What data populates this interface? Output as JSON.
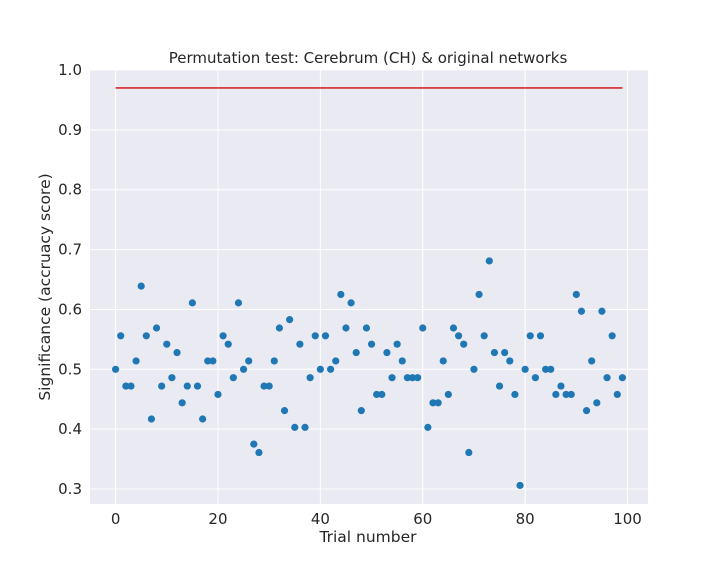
{
  "chart_data": {
    "type": "scatter",
    "title": "Permutation test: Cerebrum (CH) & original networks",
    "xlabel": "Trial number",
    "ylabel": "Significance (accruacy score)",
    "xlim": [
      -5,
      104
    ],
    "ylim": [
      0.275,
      1.0
    ],
    "xticks": [
      0,
      20,
      40,
      60,
      80,
      100
    ],
    "xtick_labels": [
      "0",
      "20",
      "40",
      "60",
      "80",
      "100"
    ],
    "yticks": [
      0.3,
      0.4,
      0.5,
      0.6,
      0.7,
      0.8,
      0.9,
      1.0
    ],
    "ytick_labels": [
      "0.3",
      "0.4",
      "0.5",
      "0.6",
      "0.7",
      "0.8",
      "0.9",
      "1.0"
    ],
    "grid": true,
    "colors": {
      "points": "#1f77b4",
      "reference_line": "#d62728",
      "plot_background": "#eaeaf2",
      "grid": "#ffffff"
    },
    "reference_line": {
      "x": [
        0,
        99
      ],
      "y": 0.97
    },
    "series": [
      {
        "x": [
          0,
          1,
          2,
          3,
          4,
          5,
          6,
          7,
          8,
          9,
          10,
          11,
          12,
          13,
          14,
          15,
          16,
          17,
          18,
          19,
          20,
          21,
          22,
          23,
          24,
          25,
          26,
          27,
          28,
          29,
          30,
          31,
          32,
          33,
          34,
          35,
          36,
          37,
          38,
          39,
          40,
          41,
          42,
          43,
          44,
          45,
          46,
          47,
          48,
          49,
          50,
          51,
          52,
          53,
          54,
          55,
          56,
          57,
          58,
          59,
          60,
          61,
          62,
          63,
          64,
          65,
          66,
          67,
          68,
          69,
          70,
          71,
          72,
          73,
          74,
          75,
          76,
          77,
          78,
          79,
          80,
          81,
          82,
          83,
          84,
          85,
          86,
          87,
          88,
          89,
          90,
          91,
          92,
          93,
          94,
          95,
          96,
          97,
          98,
          99
        ],
        "y": [
          0.5,
          0.556,
          0.472,
          0.472,
          0.514,
          0.639,
          0.556,
          0.417,
          0.569,
          0.472,
          0.542,
          0.486,
          0.528,
          0.444,
          0.472,
          0.611,
          0.472,
          0.417,
          0.514,
          0.514,
          0.458,
          0.556,
          0.542,
          0.486,
          0.611,
          0.5,
          0.514,
          0.375,
          0.361,
          0.472,
          0.472,
          0.514,
          0.569,
          0.431,
          0.583,
          0.403,
          0.542,
          0.403,
          0.486,
          0.556,
          0.5,
          0.556,
          0.5,
          0.514,
          0.625,
          0.569,
          0.611,
          0.528,
          0.431,
          0.569,
          0.542,
          0.458,
          0.458,
          0.528,
          0.486,
          0.542,
          0.514,
          0.486,
          0.486,
          0.486,
          0.569,
          0.403,
          0.444,
          0.444,
          0.514,
          0.458,
          0.569,
          0.556,
          0.542,
          0.361,
          0.5,
          0.625,
          0.556,
          0.681,
          0.528,
          0.472,
          0.528,
          0.514,
          0.458,
          0.306,
          0.5,
          0.556,
          0.486,
          0.556,
          0.5,
          0.5,
          0.458,
          0.472,
          0.458,
          0.458,
          0.625,
          0.597,
          0.431,
          0.514,
          0.444,
          0.597,
          0.486,
          0.556,
          0.458,
          0.486
        ]
      }
    ]
  }
}
